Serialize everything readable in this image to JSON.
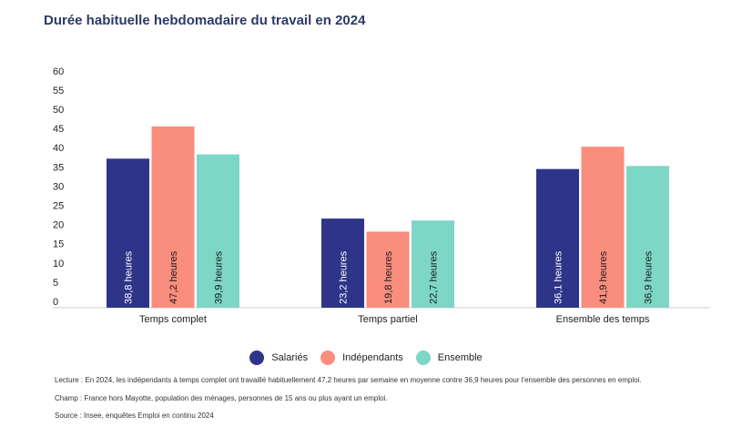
{
  "chart_data": {
    "type": "bar",
    "title": "Durée habituelle hebdomadaire du travail en 2024",
    "categories": [
      "Temps complet",
      "Temps partiel",
      "Ensemble des temps"
    ],
    "series": [
      {
        "name": "Salariés",
        "color": "#2e3589",
        "values": [
          38.8,
          23.2,
          36.1
        ],
        "labels": [
          "38,8 heures",
          "23,2 heures",
          "36,1 heures"
        ]
      },
      {
        "name": "Indépendants",
        "color": "#f98d7e",
        "values": [
          47.2,
          19.8,
          41.9
        ],
        "labels": [
          "47,2 heures",
          "19,8 heures",
          "41,9 heures"
        ]
      },
      {
        "name": "Ensemble",
        "color": "#7ed6c6",
        "values": [
          39.9,
          22.7,
          36.9
        ],
        "labels": [
          "39,9 heures",
          "22,7 heures",
          "36,9 heures"
        ]
      }
    ],
    "yticks": [
      "0",
      "5",
      "10",
      "15",
      "20",
      "25",
      "30",
      "35",
      "40",
      "45",
      "50",
      "55",
      "60"
    ],
    "ylim": [
      0,
      60
    ],
    "xlabel": "",
    "ylabel": "",
    "grid": false,
    "legend_position": "bottom"
  },
  "notes": {
    "lecture": "Lecture : En 2024, les indépendants à temps complet ont travaillé habituellement 47,2 heures par semaine en moyenne contre 36,9 heures pour l'ensemble des personnes en emploi.",
    "champ": "Champ : France hors Mayotte, population des ménages, personnes de 15 ans ou plus ayant un emploi.",
    "source": "Source : Insee, enquêtes Emploi en continu 2024"
  }
}
